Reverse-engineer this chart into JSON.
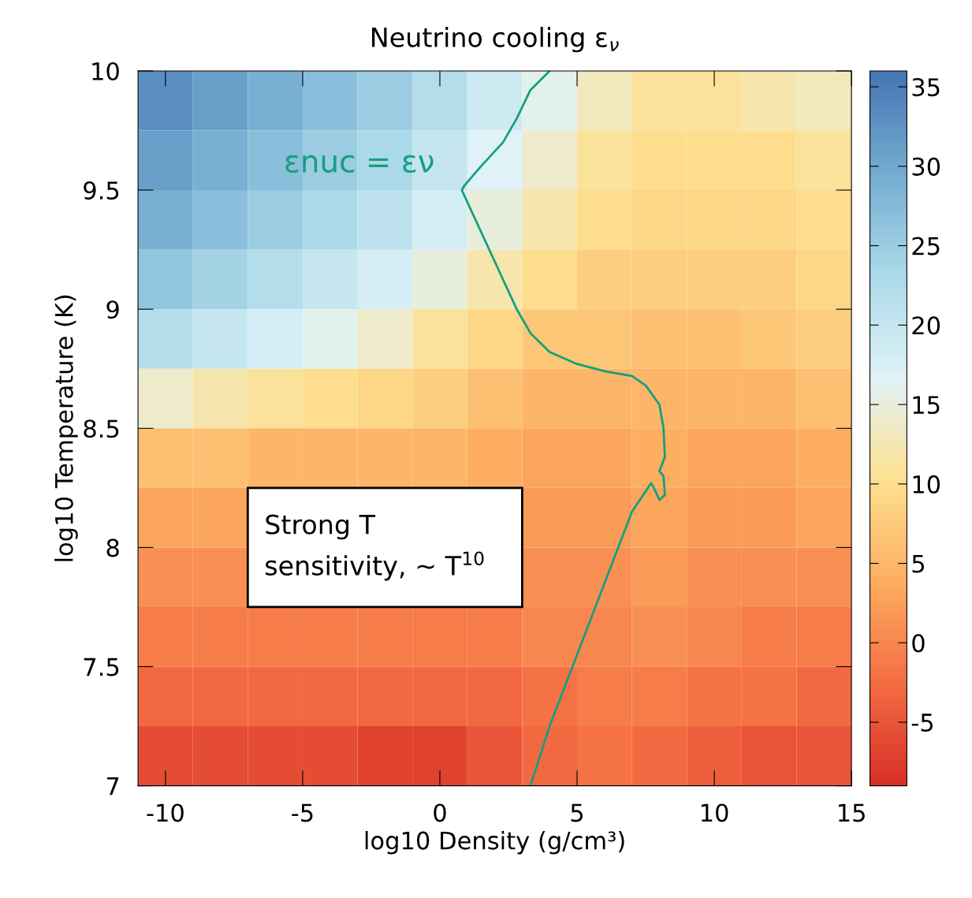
{
  "chart_data": [
    {
      "type": "heatmap",
      "tick_labels": false,
      "categories": [
        null,
        null,
        null,
        null,
        null,
        null,
        null,
        null,
        null,
        null,
        null,
        null,
        null
      ],
      "y_categories": [
        null,
        null,
        null,
        null,
        null,
        null,
        null,
        null,
        null,
        null,
        null,
        null
      ],
      "clim": [
        -9,
        36
      ],
      "cticks": [
        -5,
        0,
        5,
        10,
        15,
        20,
        25,
        30,
        35
      ],
      "colors": [
        "#d73027",
        "#f46d43",
        "#fdae61",
        "#fee090",
        "#e0f3f8",
        "#abd9e9",
        "#74add1",
        "#4575b4"
      ],
      "cells": [
        [
          33,
          31,
          29,
          27,
          25,
          22,
          19,
          16,
          13,
          11,
          11,
          12,
          13
        ],
        [
          31,
          29,
          27,
          25,
          23,
          20,
          17,
          14,
          11,
          10,
          10,
          10,
          11
        ],
        [
          29,
          27,
          25,
          23,
          21,
          18,
          15,
          12,
          10,
          9,
          9,
          9,
          10
        ],
        [
          26,
          24,
          22,
          20,
          18,
          15,
          12,
          10,
          8,
          8,
          8,
          8,
          9
        ],
        [
          22,
          20,
          18,
          16,
          14,
          11,
          9,
          7,
          7,
          6,
          6,
          7,
          8
        ],
        [
          14,
          12,
          11,
          10,
          9,
          8,
          6,
          5,
          5,
          5,
          5,
          5,
          6
        ],
        [
          6,
          6,
          5,
          5,
          5,
          5,
          4,
          3,
          3,
          4,
          3,
          3,
          4
        ],
        [
          3,
          3,
          null,
          null,
          null,
          null,
          null,
          2,
          2,
          3,
          2,
          2,
          3
        ],
        [
          1,
          1,
          null,
          null,
          null,
          null,
          null,
          1,
          1,
          2,
          1,
          1,
          1
        ],
        [
          -1,
          -1,
          -1,
          -1,
          -1,
          -1,
          -1,
          0,
          0,
          1,
          0,
          -1,
          -1
        ],
        [
          -3,
          -3,
          -3,
          -3,
          -3,
          -3,
          -3,
          -2,
          -1,
          -1,
          -2,
          -2,
          -3
        ],
        [
          -6,
          -6,
          -6,
          -6,
          -7,
          -7,
          -5,
          -3,
          -2,
          -3,
          -4,
          -5,
          -5
        ]
      ]
    },
    {
      "type": "line",
      "title": "Neutrino cooling ε$_{ν}$",
      "xlabel": "log10 Density (g/cm³)",
      "ylabel": "log10 Temperature (K)",
      "xlim": [
        -11,
        15
      ],
      "xticks": [
        -10,
        -5,
        0,
        5,
        10,
        15
      ],
      "ylim": [
        7,
        10
      ],
      "yticks": [
        7,
        7.5,
        8,
        8.5,
        9,
        9.5,
        10
      ],
      "series": [
        {
          "color": "#14a07e",
          "x": [
            3.3,
            4,
            5,
            6,
            7,
            7.7,
            7.8,
            8.0,
            8.2,
            8.15,
            8.0,
            8.2,
            8.15,
            8.0,
            7.5,
            7,
            6,
            5,
            4,
            3.3,
            2.8,
            2.0,
            1.2,
            0.8,
            0.9,
            1.5,
            2.3,
            2.8,
            3.3,
            4.0
          ],
          "values": [
            7.0,
            7.25,
            7.55,
            7.85,
            8.15,
            8.27,
            8.25,
            8.2,
            8.22,
            8.3,
            8.32,
            8.38,
            8.5,
            8.6,
            8.68,
            8.72,
            8.74,
            8.77,
            8.82,
            8.9,
            9.0,
            9.2,
            9.4,
            9.5,
            9.52,
            9.6,
            9.7,
            9.8,
            9.92,
            10.0
          ]
        }
      ],
      "annotations": [
        "εnuc = εν",
        "Strong T\nsensitivity, ~ T$^{10}$"
      ]
    }
  ]
}
